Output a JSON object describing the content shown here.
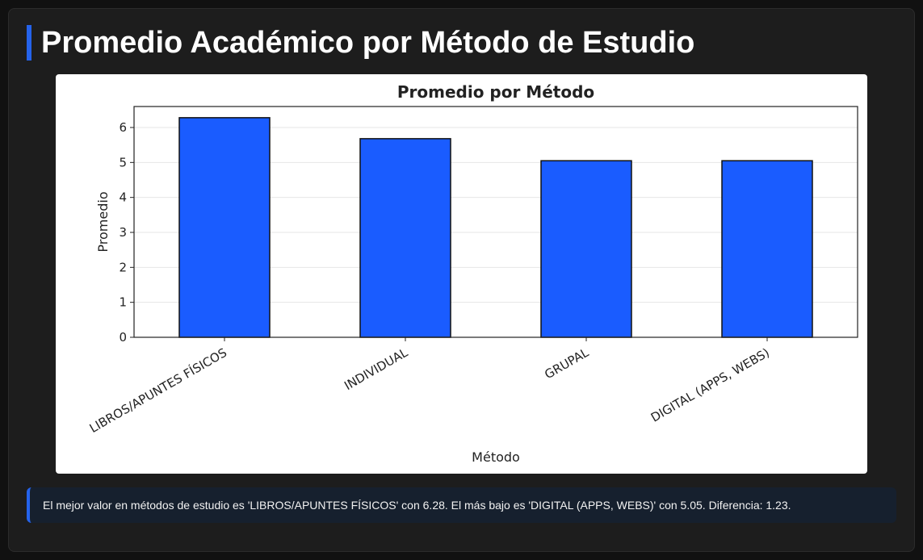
{
  "page": {
    "title": "Promedio Académico por Método de Estudio",
    "insight": "El mejor valor en métodos de estudio es 'LIBROS/APUNTES FÍSICOS' con 6.28. El más bajo es 'DIGITAL (APPS, WEBS)' con 5.05. Diferencia: 1.23."
  },
  "colors": {
    "accent": "#2563eb",
    "bar_fill": "#1a5cff",
    "bar_edge": "#111111",
    "background": "#1d1d1d",
    "chart_background": "#ffffff"
  },
  "chart_data": {
    "type": "bar",
    "title": "Promedio por Método",
    "xlabel": "Método",
    "ylabel": "Promedio",
    "categories": [
      "LIBROS/APUNTES FÍSICOS",
      "INDIVIDUAL",
      "GRUPAL",
      "DIGITAL (APPS, WEBS)"
    ],
    "values": [
      6.28,
      5.68,
      5.05,
      5.05
    ],
    "ylim": [
      0,
      6.6
    ],
    "yticks": [
      0,
      1,
      2,
      3,
      4,
      5,
      6
    ],
    "grid": "horizontal",
    "legend": "none"
  }
}
